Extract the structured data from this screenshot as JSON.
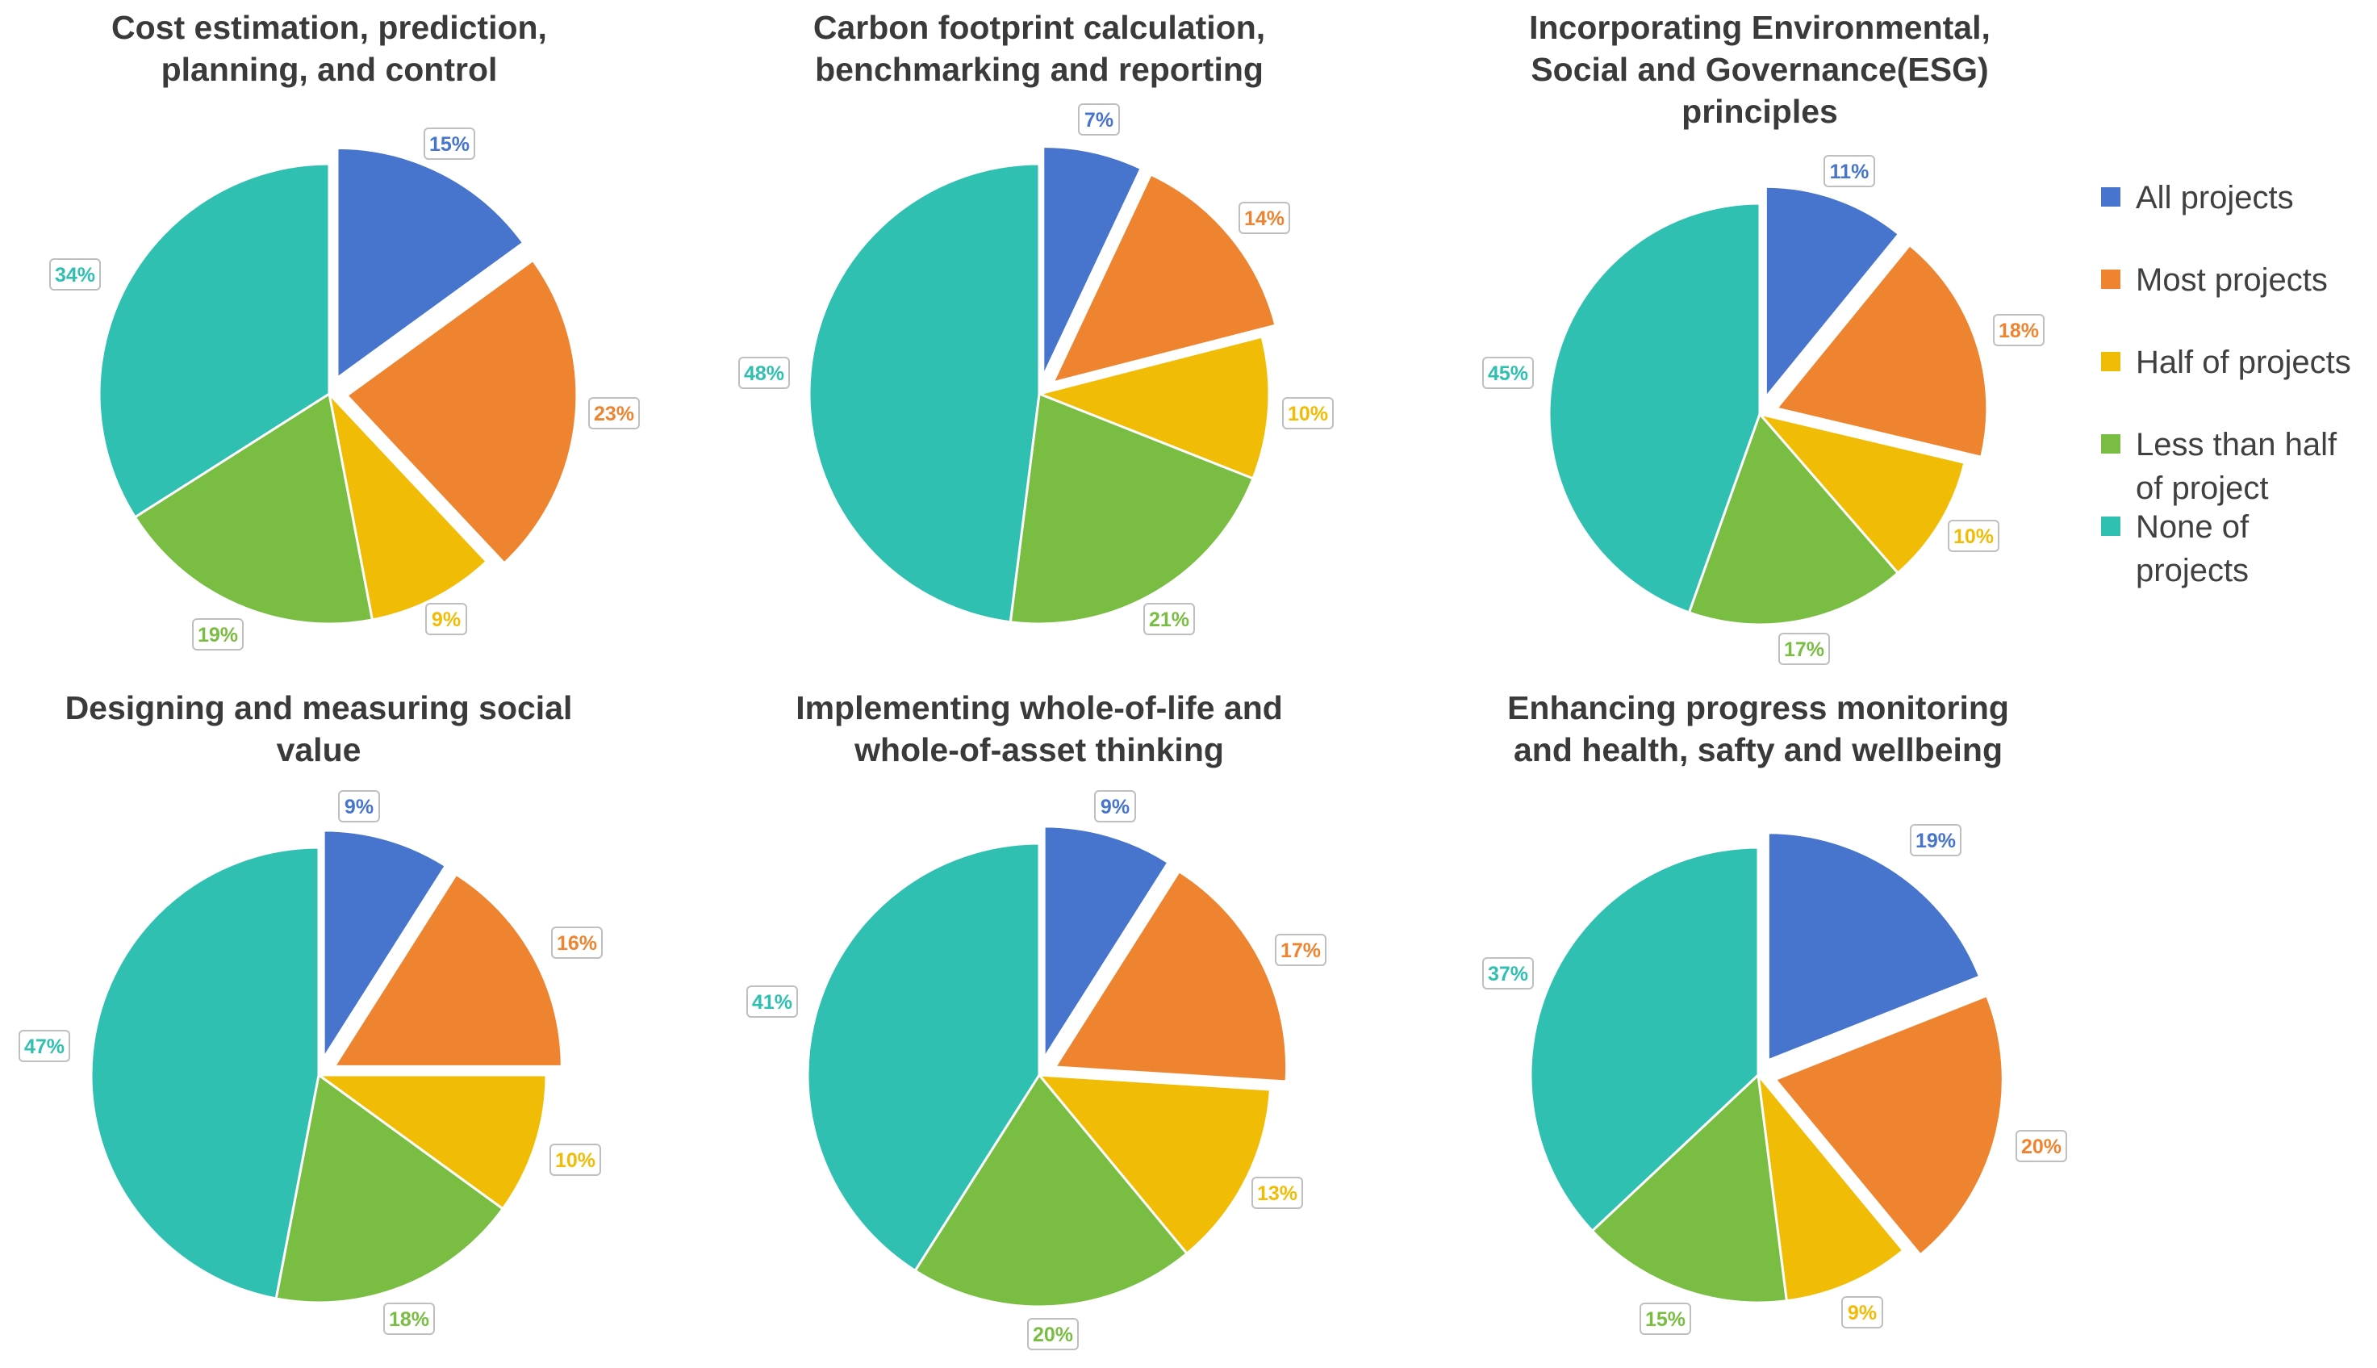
{
  "legend": {
    "items": [
      {
        "lines": [
          "All projects"
        ],
        "color": "#4774CC"
      },
      {
        "lines": [
          "Most projects"
        ],
        "color": "#EE8430"
      },
      {
        "lines": [
          "Half of projects"
        ],
        "color": "#F1BC05"
      },
      {
        "lines": [
          "Less than half",
          "of project"
        ],
        "color": "#79BD43"
      },
      {
        "lines": [
          "None of",
          "projects"
        ],
        "color": "#30C0B2"
      }
    ]
  },
  "chart_data": [
    {
      "type": "pie",
      "title": [
        "Cost estimation, prediction,",
        "planning, and control"
      ],
      "categories": [
        "All projects",
        "Most projects",
        "Half of projects",
        "Less than half of project",
        "None of projects"
      ],
      "values": [
        15,
        23,
        9,
        19,
        34
      ],
      "labels": [
        "15%",
        "23%",
        "9%",
        "19%",
        "34%"
      ],
      "exploded": [
        true,
        true,
        false,
        false,
        false
      ]
    },
    {
      "type": "pie",
      "title": [
        "Carbon footprint calculation,",
        "benchmarking and reporting"
      ],
      "categories": [
        "All projects",
        "Most projects",
        "Half of projects",
        "Less than half of project",
        "None of projects"
      ],
      "values": [
        7,
        14,
        10,
        21,
        48
      ],
      "labels": [
        "7%",
        "14%",
        "10%",
        "21%",
        "48%"
      ],
      "exploded": [
        true,
        true,
        false,
        false,
        false
      ]
    },
    {
      "type": "pie",
      "title": [
        "Incorporating Environmental,",
        "Social and Governance(ESG)",
        "principles"
      ],
      "categories": [
        "All projects",
        "Most projects",
        "Half of projects",
        "Less than half of project",
        "None of projects"
      ],
      "values": [
        11,
        18,
        10,
        17,
        45
      ],
      "labels": [
        "11%",
        "18%",
        "10%",
        "17%",
        "45%"
      ],
      "exploded": [
        true,
        true,
        false,
        false,
        false
      ]
    },
    {
      "type": "pie",
      "title": [
        "Designing and measuring social",
        "value"
      ],
      "categories": [
        "All projects",
        "Most projects",
        "Half of projects",
        "Less than half of project",
        "None of projects"
      ],
      "values": [
        9,
        16,
        10,
        18,
        47
      ],
      "labels": [
        "9%",
        "16%",
        "10%",
        "18%",
        "47%"
      ],
      "exploded": [
        true,
        true,
        false,
        false,
        false
      ]
    },
    {
      "type": "pie",
      "title": [
        "Implementing whole-of-life and",
        "whole-of-asset thinking"
      ],
      "categories": [
        "All projects",
        "Most projects",
        "Half of projects",
        "Less than half of project",
        "None of projects"
      ],
      "values": [
        9,
        17,
        13,
        20,
        41
      ],
      "labels": [
        "9%",
        "17%",
        "13%",
        "20%",
        "41%"
      ],
      "exploded": [
        true,
        true,
        false,
        false,
        false
      ]
    },
    {
      "type": "pie",
      "title": [
        "Enhancing progress monitoring",
        "and health, safty and wellbeing"
      ],
      "categories": [
        "All projects",
        "Most projects",
        "Half of projects",
        "Less than half of project",
        "None of projects"
      ],
      "values": [
        19,
        20,
        9,
        15,
        37
      ],
      "labels": [
        "19%",
        "20%",
        "9%",
        "15%",
        "37%"
      ],
      "exploded": [
        true,
        true,
        false,
        false,
        false
      ]
    }
  ]
}
